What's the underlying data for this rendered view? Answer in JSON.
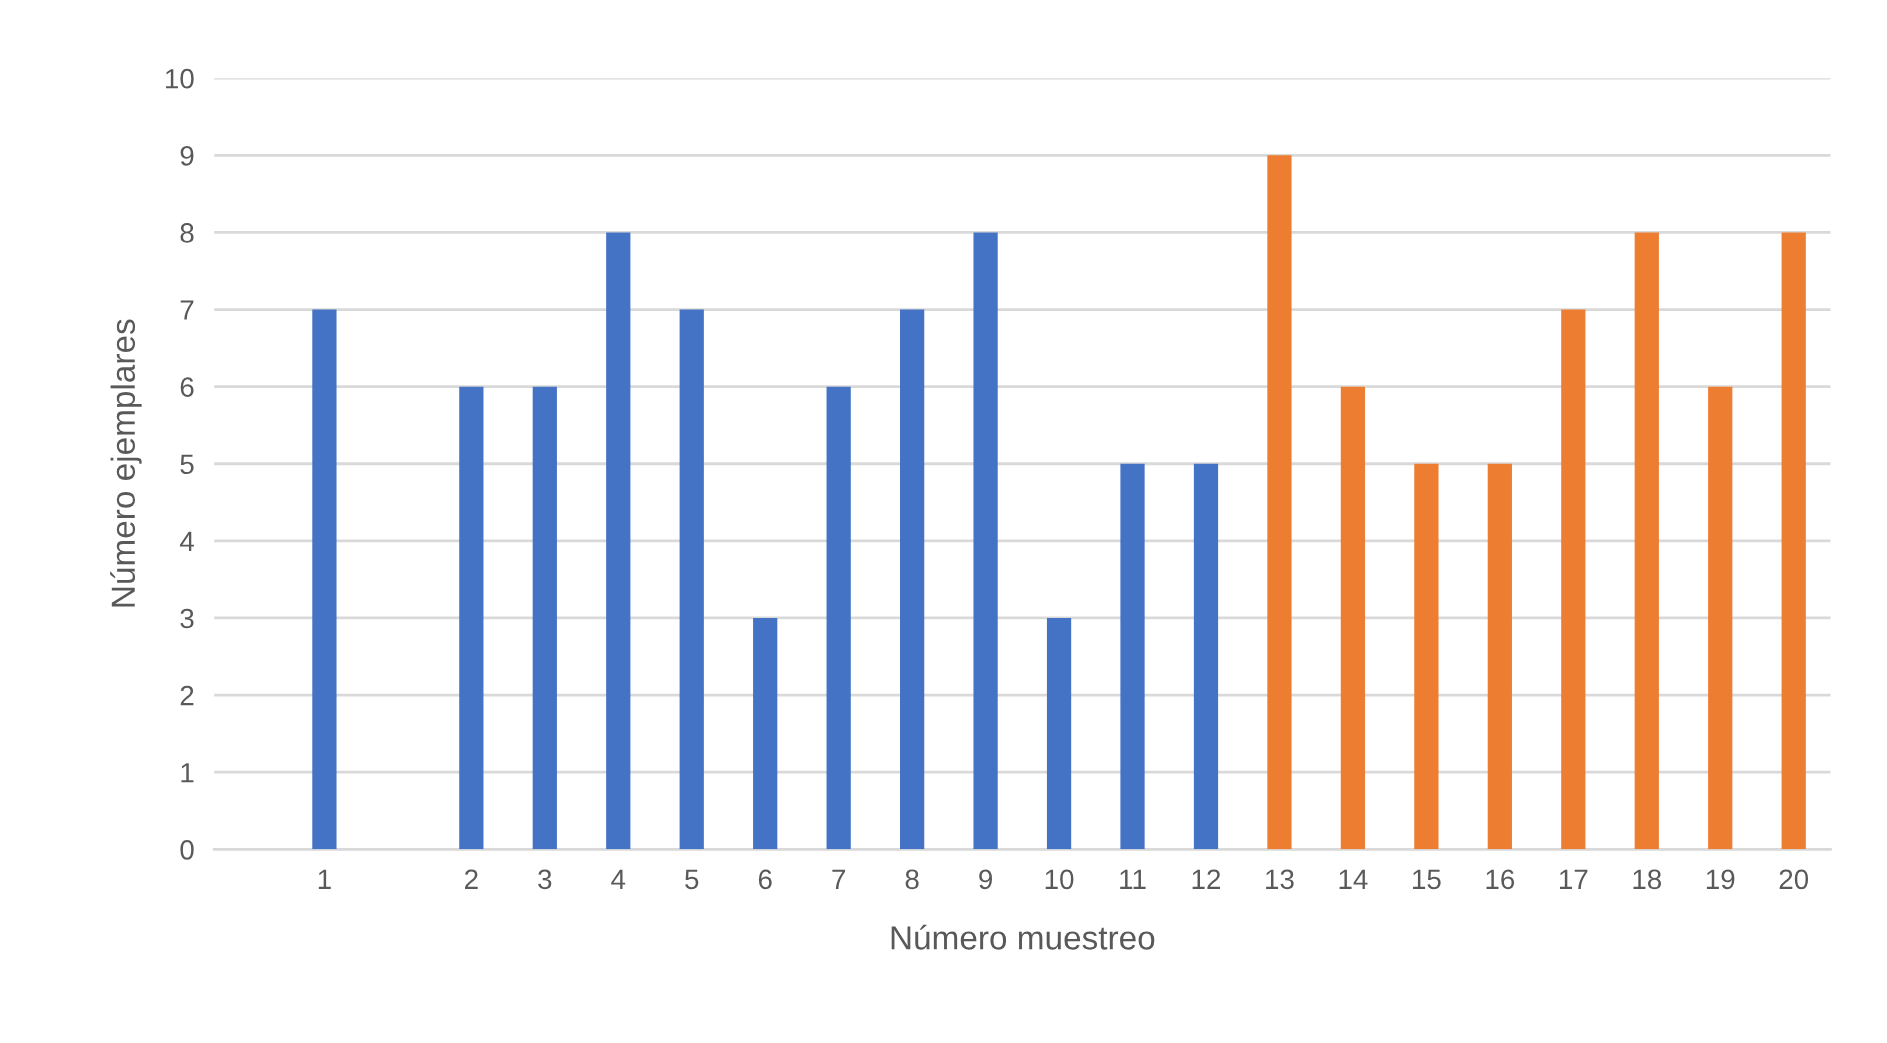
{
  "chart_data": {
    "type": "bar",
    "xlabel": "Número muestreo",
    "ylabel": "Número ejemplares",
    "categories": [
      null,
      "1",
      null,
      "2",
      "3",
      "4",
      "5",
      "6",
      "7",
      "8",
      "9",
      "10",
      "11",
      "12",
      "13",
      "14",
      "15",
      "16",
      "17",
      "18",
      "19",
      "20"
    ],
    "values": [
      null,
      7,
      null,
      6,
      6,
      8,
      7,
      3,
      6,
      7,
      8,
      3,
      5,
      5,
      9,
      6,
      5,
      5,
      7,
      8,
      6,
      8
    ],
    "colors": [
      "#4472c4",
      "#4472c4",
      "#4472c4",
      "#4472c4",
      "#4472c4",
      "#4472c4",
      "#4472c4",
      "#4472c4",
      "#4472c4",
      "#4472c4",
      "#4472c4",
      "#4472c4",
      "#4472c4",
      "#4472c4",
      "#ed7d31",
      "#ed7d31",
      "#ed7d31",
      "#ed7d31",
      "#ed7d31",
      "#ed7d31",
      "#ed7d31",
      "#ed7d31"
    ],
    "ylim": [
      0,
      10
    ],
    "yticks": [
      0,
      1,
      2,
      3,
      4,
      5,
      6,
      7,
      8,
      9,
      10
    ],
    "grid": "y",
    "legend": false
  }
}
